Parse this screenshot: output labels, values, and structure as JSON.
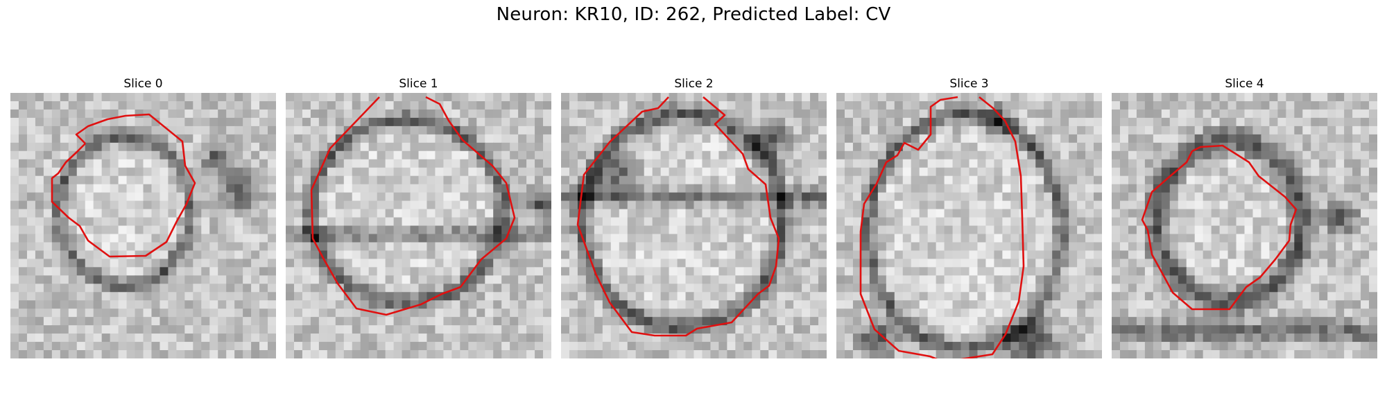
{
  "figure": {
    "title": "Neuron: KR10, ID: 262, Predicted Label: CV"
  },
  "panels": [
    {
      "title": "Slice 0"
    },
    {
      "title": "Slice 1"
    },
    {
      "title": "Slice 2"
    },
    {
      "title": "Slice 3"
    },
    {
      "title": "Slice 4"
    }
  ],
  "colors": {
    "contour": "#e01010",
    "background": "#ffffff"
  }
}
